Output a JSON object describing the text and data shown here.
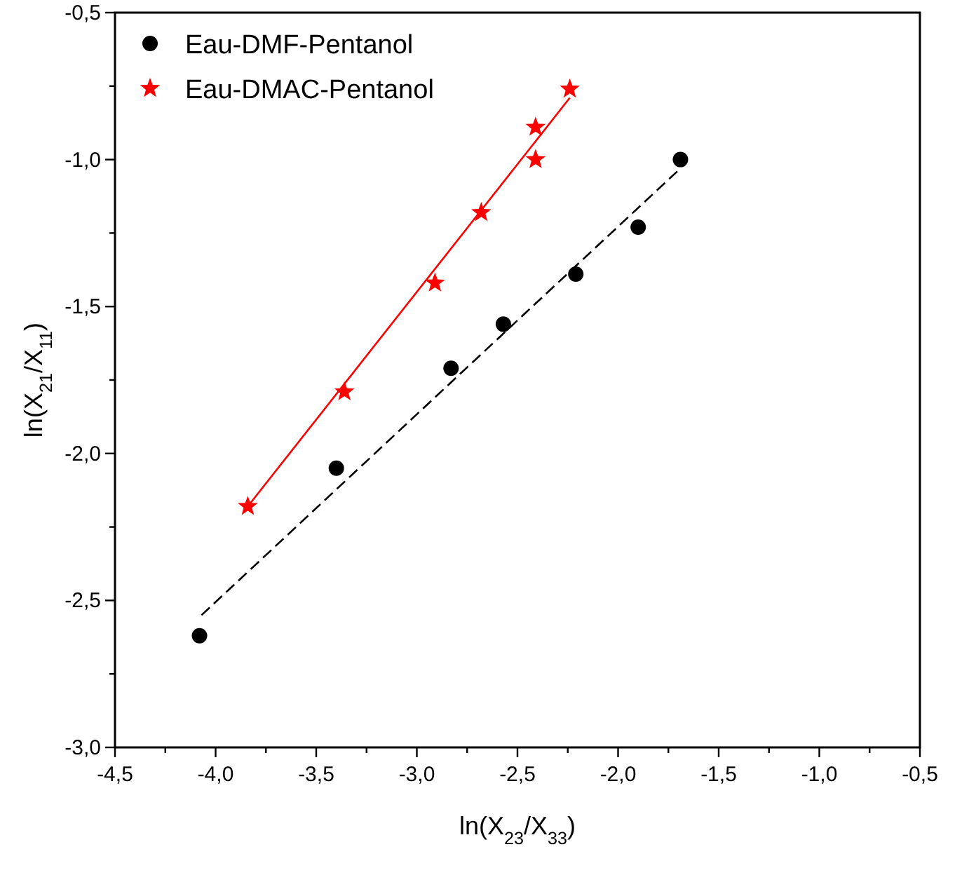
{
  "chart_data": {
    "type": "scatter",
    "xlabel": "ln(X$_{23}$/X$_{33}$)",
    "ylabel": "ln(X$_{21}$/X$_{11}$)",
    "xlim": [
      -4.5,
      -0.5
    ],
    "ylim": [
      -3.0,
      -0.5
    ],
    "xticks": [
      {
        "value": -4.5,
        "label": "-4,5"
      },
      {
        "value": -4.25,
        "label": null
      },
      {
        "value": -4.0,
        "label": "-4,0"
      },
      {
        "value": -3.75,
        "label": null
      },
      {
        "value": -3.5,
        "label": "-3,5"
      },
      {
        "value": -3.25,
        "label": null
      },
      {
        "value": -3.0,
        "label": "-3,0"
      },
      {
        "value": -2.75,
        "label": null
      },
      {
        "value": -2.5,
        "label": "-2,5"
      },
      {
        "value": -2.25,
        "label": null
      },
      {
        "value": -2.0,
        "label": "-2,0"
      },
      {
        "value": -1.75,
        "label": null
      },
      {
        "value": -1.5,
        "label": "-1,5"
      },
      {
        "value": -1.25,
        "label": null
      },
      {
        "value": -1.0,
        "label": "-1,0"
      },
      {
        "value": -0.75,
        "label": null
      },
      {
        "value": -0.5,
        "label": "-0,5"
      }
    ],
    "yticks": [
      {
        "value": -3.0,
        "label": "-3,0"
      },
      {
        "value": -2.75,
        "label": null
      },
      {
        "value": -2.5,
        "label": "-2,5"
      },
      {
        "value": -2.25,
        "label": null
      },
      {
        "value": -2.0,
        "label": "-2,0"
      },
      {
        "value": -1.75,
        "label": null
      },
      {
        "value": -1.5,
        "label": "-1,5"
      },
      {
        "value": -1.25,
        "label": null
      },
      {
        "value": -1.0,
        "label": "-1,0"
      },
      {
        "value": -0.75,
        "label": null
      },
      {
        "value": -0.5,
        "label": "-0,5"
      }
    ],
    "grid": false,
    "legend": "top left",
    "series": [
      {
        "name": "Eau-DMF-Pentanol",
        "marker": "circle",
        "color": "#000000",
        "x": [
          -4.08,
          -3.4,
          -2.83,
          -2.57,
          -2.21,
          -1.9,
          -1.69
        ],
        "values": [
          -2.62,
          -2.05,
          -1.71,
          -1.56,
          -1.39,
          -1.23,
          -1.0
        ]
      },
      {
        "name": "Eau-DMAC-Pentanol",
        "marker": "star",
        "color": "#ff0000",
        "x": [
          -3.84,
          -3.36,
          -2.91,
          -2.68,
          -2.41,
          -2.41,
          -2.24
        ],
        "values": [
          -2.18,
          -1.79,
          -1.42,
          -1.18,
          -1.0,
          -0.89,
          -0.76
        ]
      },
      {
        "type": "line",
        "marker": "none",
        "color": "#000000",
        "line_style": "dashed",
        "x": [
          -4.07,
          -1.69
        ],
        "values": [
          -2.55,
          -1.03
        ]
      },
      {
        "type": "line",
        "marker": "none",
        "color": "#ff0000",
        "line_style": "solid",
        "x": [
          -3.84,
          -2.24
        ],
        "values": [
          -2.18,
          -0.79
        ]
      }
    ]
  }
}
